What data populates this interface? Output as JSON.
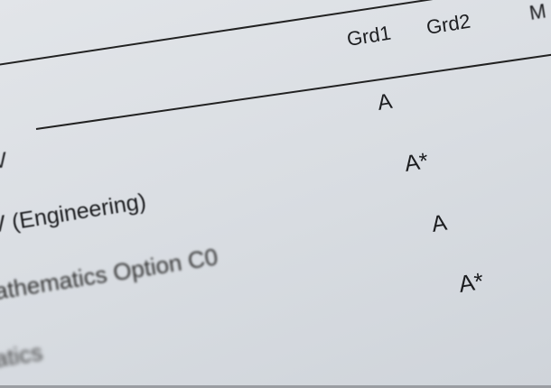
{
  "header": {
    "columns": [
      "Grd1",
      "Grd2",
      "M"
    ]
  },
  "rows": [
    {
      "subject": "",
      "grd1": "A",
      "grd2": ""
    },
    {
      "subject": "V",
      "grd1": "A*",
      "grd2": ""
    },
    {
      "subject": "V (Engineering)",
      "grd1": "A",
      "grd2": ""
    },
    {
      "subject": "athematics Option C0",
      "grd1": "",
      "grd2": "A*"
    },
    {
      "subject": "atics",
      "grd1": "",
      "grd2": ""
    }
  ]
}
